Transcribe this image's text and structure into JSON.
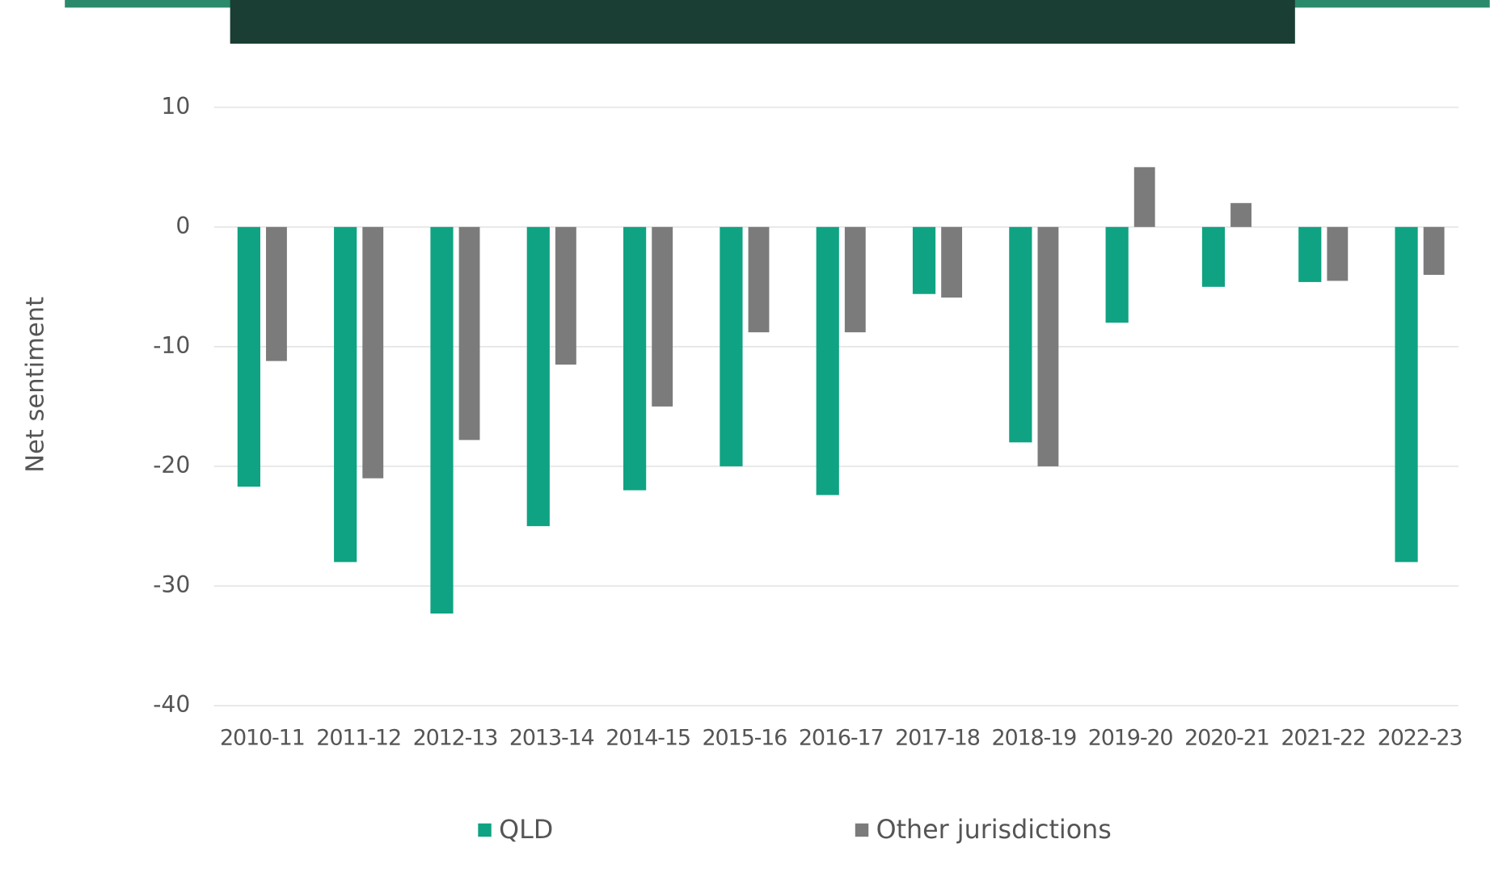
{
  "chart_data": {
    "type": "bar",
    "ylabel": "Net sentiment",
    "categories": [
      "2010-11",
      "2011-12",
      "2012-13",
      "2013-14",
      "2014-15",
      "2015-16",
      "2016-17",
      "2017-18",
      "2018-19",
      "2019-20",
      "2020-21",
      "2021-22",
      "2022-23"
    ],
    "series": [
      {
        "name": "QLD",
        "color": "#0fa383",
        "values": [
          -21.7,
          -28,
          -32.3,
          -25,
          -22,
          -20,
          -22.4,
          -5.6,
          -18,
          -8,
          -5,
          -4.6,
          -28
        ]
      },
      {
        "name": "Other jurisdictions",
        "color": "#7b7b7b",
        "values": [
          -11.2,
          -21,
          -17.8,
          -11.5,
          -15,
          -8.8,
          -8.8,
          -5.9,
          -20,
          5,
          2,
          -4.5,
          -4
        ]
      }
    ],
    "ylim": [
      -40,
      10
    ],
    "yticks": [
      -40,
      -30,
      -20,
      -10,
      0,
      10
    ],
    "grid": true,
    "legend": "bottom"
  }
}
